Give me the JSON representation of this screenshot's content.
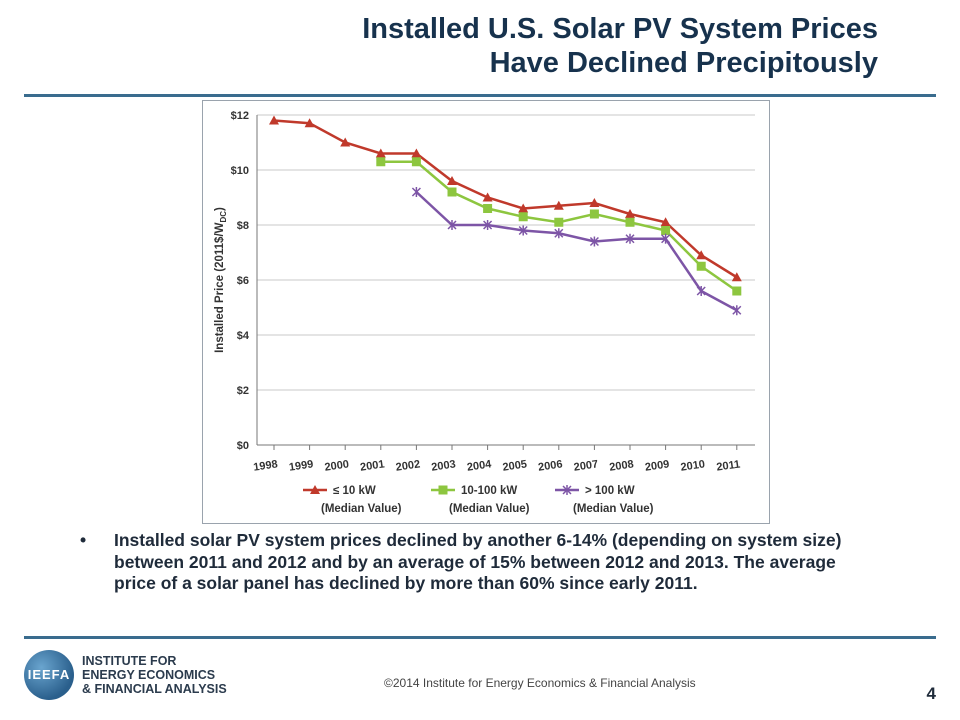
{
  "slide": {
    "title_line1": "Installed U.S. Solar PV System Prices",
    "title_line2": "Have Declined Precipitously",
    "bullet": "Installed solar PV system prices declined by another 6-14% (depending on system size) between 2011 and 2012 and by an average of 15% between 2012 and 2013. The average price of a solar panel has declined by more than 60% since early 2011.",
    "bullet_marker": "•",
    "footer": "©2014 Institute for Energy Economics & Financial Analysis",
    "page_number": "4",
    "logo": {
      "mark": "IEEFA",
      "line1": "INSTITUTE FOR",
      "line2": "ENERGY ECONOMICS",
      "line3": "& FINANCIAL ANALYSIS"
    }
  },
  "chart_data": {
    "type": "line",
    "title": "",
    "ylabel": "Installed Price (2011$/W",
    "ylabel_subscript": "DC",
    "ylabel_close": ")",
    "xlabel": "",
    "x_tick_labels": [
      "1998",
      "1999",
      "2000",
      "2001",
      "2002",
      "2003",
      "2004",
      "2005",
      "2006",
      "2007",
      "2008",
      "2009",
      "2010",
      "2011"
    ],
    "y_tick_labels": [
      "$12",
      "$10",
      "$8",
      "$6",
      "$4",
      "$2",
      "$0"
    ],
    "ylim": [
      0,
      12
    ],
    "grid": "horizontal",
    "legend_position": "bottom",
    "series": [
      {
        "name": "≤ 10 kW",
        "note": "(Median Value)",
        "color": "#c0392b",
        "marker": "triangle",
        "points": [
          [
            1998,
            11.8
          ],
          [
            1999,
            11.7
          ],
          [
            2000,
            11.0
          ],
          [
            2001,
            10.6
          ],
          [
            2002,
            10.6
          ],
          [
            2003,
            9.6
          ],
          [
            2004,
            9.0
          ],
          [
            2005,
            8.6
          ],
          [
            2006,
            8.7
          ],
          [
            2007,
            8.8
          ],
          [
            2008,
            8.4
          ],
          [
            2009,
            8.1
          ],
          [
            2010,
            6.9
          ],
          [
            2011,
            6.1
          ]
        ]
      },
      {
        "name": "10-100 kW",
        "note": "(Median Value)",
        "color": "#8dc63f",
        "marker": "square",
        "points": [
          [
            2001,
            10.3
          ],
          [
            2002,
            10.3
          ],
          [
            2003,
            9.2
          ],
          [
            2004,
            8.6
          ],
          [
            2005,
            8.3
          ],
          [
            2006,
            8.1
          ],
          [
            2007,
            8.4
          ],
          [
            2008,
            8.1
          ],
          [
            2009,
            7.8
          ],
          [
            2010,
            6.5
          ],
          [
            2011,
            5.6
          ]
        ]
      },
      {
        "name": "> 100 kW",
        "note": "(Median Value)",
        "color": "#7d55a6",
        "marker": "star",
        "points": [
          [
            2002,
            9.2
          ],
          [
            2003,
            8.0
          ],
          [
            2004,
            8.0
          ],
          [
            2005,
            7.8
          ],
          [
            2006,
            7.7
          ],
          [
            2007,
            7.4
          ],
          [
            2008,
            7.5
          ],
          [
            2009,
            7.5
          ],
          [
            2010,
            5.6
          ],
          [
            2011,
            4.9
          ]
        ]
      }
    ]
  }
}
